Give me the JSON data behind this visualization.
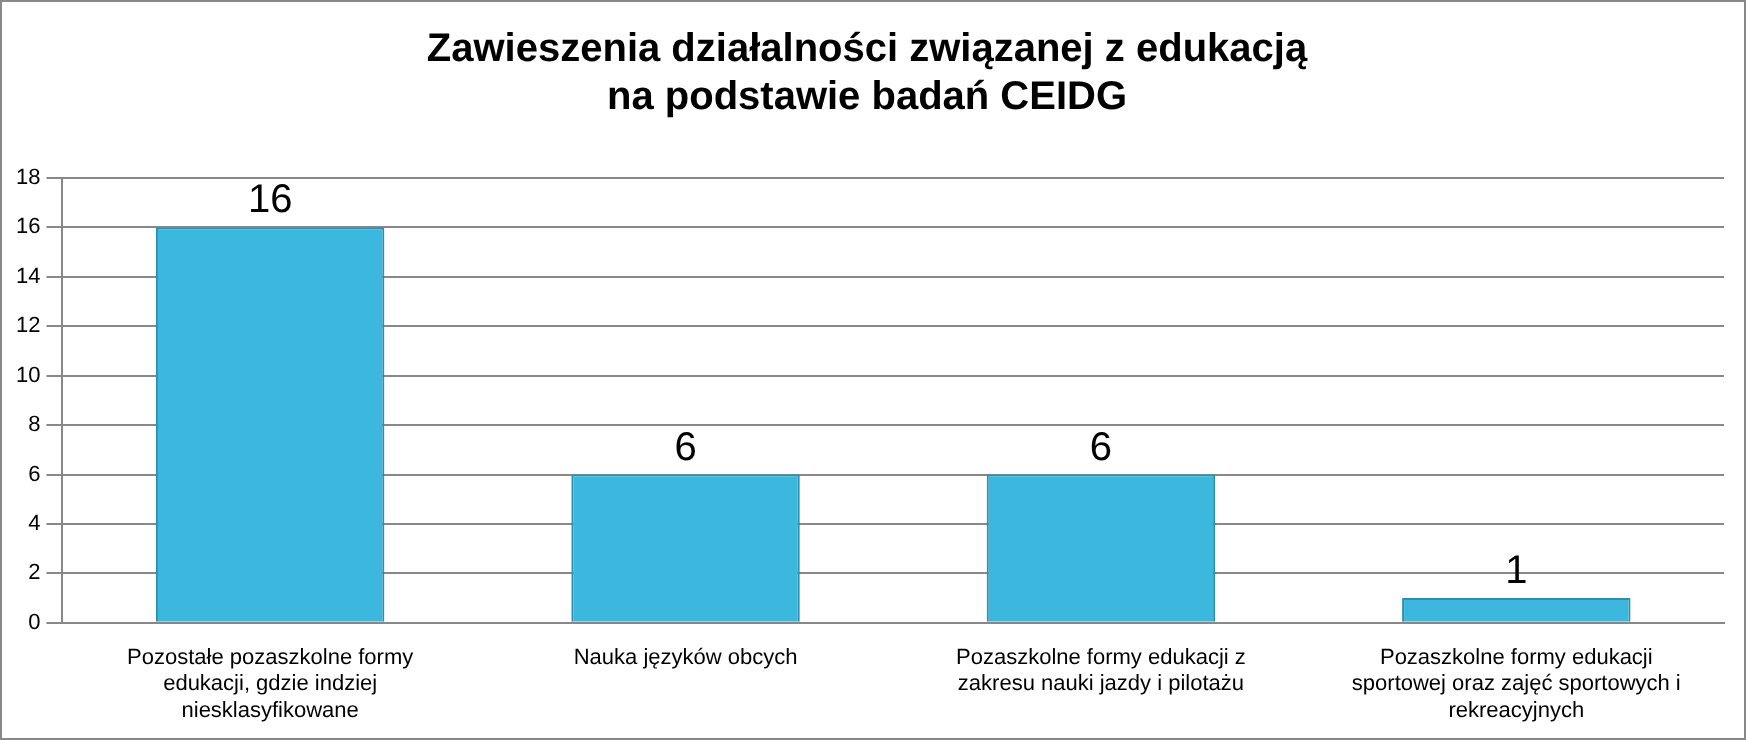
{
  "chart_data": {
    "type": "bar",
    "title": "Zawieszenia działalności związanej z edukacją\nna podstawie badań CEIDG",
    "categories": [
      "Pozostałe pozaszkolne formy edukacji, gdzie indziej niesklasyfikowane",
      "Nauka języków obcych",
      "Pozaszkolne formy edukacji z zakresu nauki jazdy i pilotażu",
      "Pozaszkolne formy edukacji sportowej oraz zajęć sportowych i rekreacyjnych"
    ],
    "values": [
      16,
      6,
      6,
      1
    ],
    "color": "#3cb8de",
    "ylim": [
      0,
      18
    ],
    "yticks": [
      0,
      2,
      4,
      6,
      8,
      10,
      12,
      14,
      16,
      18
    ],
    "grid": "y",
    "data_labels": true,
    "legend": false
  }
}
